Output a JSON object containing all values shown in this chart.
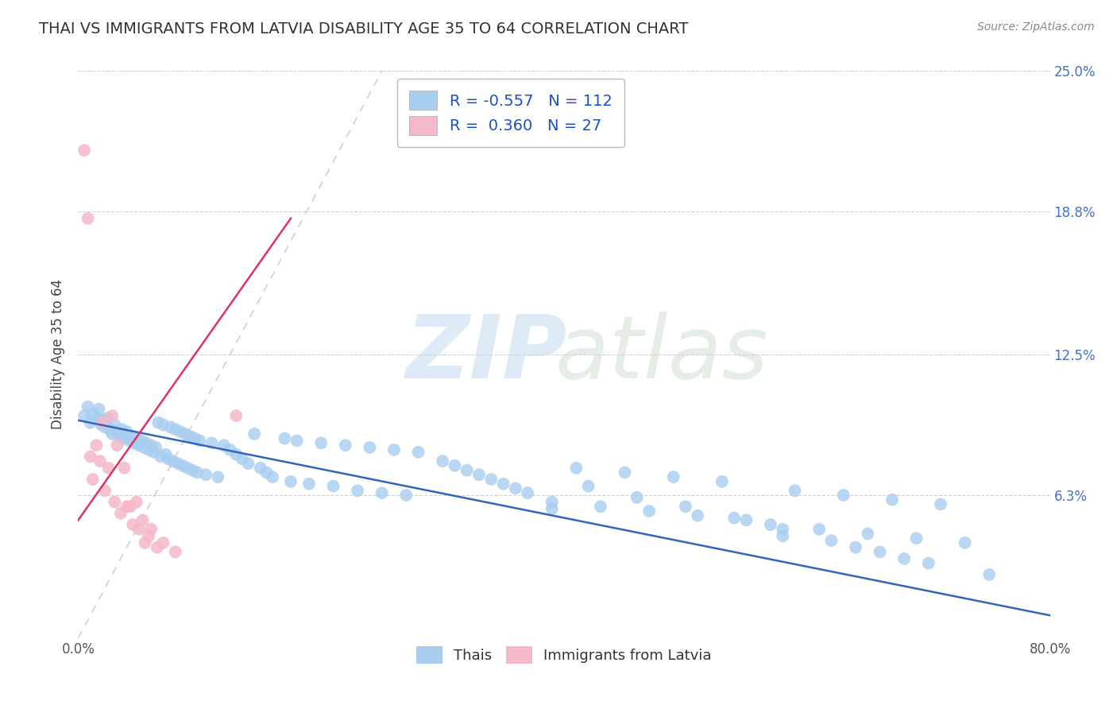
{
  "title": "THAI VS IMMIGRANTS FROM LATVIA DISABILITY AGE 35 TO 64 CORRELATION CHART",
  "source": "Source: ZipAtlas.com",
  "ylabel": "Disability Age 35 to 64",
  "xlim": [
    0.0,
    0.8
  ],
  "ylim": [
    0.0,
    0.25
  ],
  "ytick_right_labels": [
    "6.3%",
    "12.5%",
    "18.8%",
    "25.0%"
  ],
  "ytick_right_values": [
    0.063,
    0.125,
    0.188,
    0.25
  ],
  "legend_r_thai": "-0.557",
  "legend_n_thai": "112",
  "legend_r_latvia": "0.360",
  "legend_n_latvia": "27",
  "blue_color": "#A8CDEF",
  "pink_color": "#F5B8C8",
  "blue_line_color": "#3366BB",
  "pink_line_color": "#DD3366",
  "ref_line_color": "#CCCCCC",
  "thai_x": [
    0.005,
    0.008,
    0.01,
    0.012,
    0.015,
    0.017,
    0.019,
    0.02,
    0.022,
    0.024,
    0.026,
    0.028,
    0.03,
    0.032,
    0.034,
    0.036,
    0.038,
    0.04,
    0.042,
    0.044,
    0.046,
    0.048,
    0.05,
    0.052,
    0.054,
    0.056,
    0.058,
    0.06,
    0.062,
    0.064,
    0.066,
    0.068,
    0.07,
    0.072,
    0.074,
    0.076,
    0.078,
    0.08,
    0.082,
    0.084,
    0.086,
    0.088,
    0.09,
    0.092,
    0.094,
    0.096,
    0.098,
    0.1,
    0.105,
    0.11,
    0.115,
    0.12,
    0.125,
    0.13,
    0.135,
    0.14,
    0.145,
    0.15,
    0.155,
    0.16,
    0.17,
    0.175,
    0.18,
    0.19,
    0.2,
    0.21,
    0.22,
    0.23,
    0.24,
    0.25,
    0.26,
    0.27,
    0.28,
    0.3,
    0.31,
    0.32,
    0.33,
    0.34,
    0.35,
    0.36,
    0.37,
    0.39,
    0.41,
    0.43,
    0.45,
    0.47,
    0.49,
    0.51,
    0.53,
    0.55,
    0.57,
    0.59,
    0.61,
    0.63,
    0.65,
    0.67,
    0.69,
    0.71,
    0.73,
    0.39,
    0.42,
    0.46,
    0.5,
    0.54,
    0.58,
    0.62,
    0.66,
    0.7,
    0.75,
    0.58,
    0.64,
    0.68
  ],
  "thai_y": [
    0.098,
    0.102,
    0.095,
    0.099,
    0.097,
    0.101,
    0.094,
    0.096,
    0.093,
    0.097,
    0.092,
    0.09,
    0.094,
    0.091,
    0.089,
    0.092,
    0.088,
    0.091,
    0.087,
    0.089,
    0.086,
    0.088,
    0.085,
    0.087,
    0.084,
    0.086,
    0.083,
    0.085,
    0.082,
    0.084,
    0.095,
    0.08,
    0.094,
    0.081,
    0.079,
    0.093,
    0.078,
    0.092,
    0.077,
    0.091,
    0.076,
    0.09,
    0.075,
    0.089,
    0.074,
    0.088,
    0.073,
    0.087,
    0.072,
    0.086,
    0.071,
    0.085,
    0.083,
    0.081,
    0.079,
    0.077,
    0.09,
    0.075,
    0.073,
    0.071,
    0.088,
    0.069,
    0.087,
    0.068,
    0.086,
    0.067,
    0.085,
    0.065,
    0.084,
    0.064,
    0.083,
    0.063,
    0.082,
    0.078,
    0.076,
    0.074,
    0.072,
    0.07,
    0.068,
    0.066,
    0.064,
    0.06,
    0.075,
    0.058,
    0.073,
    0.056,
    0.071,
    0.054,
    0.069,
    0.052,
    0.05,
    0.065,
    0.048,
    0.063,
    0.046,
    0.061,
    0.044,
    0.059,
    0.042,
    0.057,
    0.067,
    0.062,
    0.058,
    0.053,
    0.048,
    0.043,
    0.038,
    0.033,
    0.028,
    0.045,
    0.04,
    0.035
  ],
  "latvia_x": [
    0.005,
    0.008,
    0.01,
    0.012,
    0.015,
    0.018,
    0.02,
    0.022,
    0.025,
    0.028,
    0.03,
    0.032,
    0.035,
    0.038,
    0.04,
    0.043,
    0.045,
    0.048,
    0.05,
    0.053,
    0.055,
    0.058,
    0.06,
    0.065,
    0.07,
    0.08,
    0.13
  ],
  "latvia_y": [
    0.215,
    0.185,
    0.08,
    0.07,
    0.085,
    0.078,
    0.095,
    0.065,
    0.075,
    0.098,
    0.06,
    0.085,
    0.055,
    0.075,
    0.058,
    0.058,
    0.05,
    0.06,
    0.048,
    0.052,
    0.042,
    0.045,
    0.048,
    0.04,
    0.042,
    0.038,
    0.098
  ],
  "blue_line_x": [
    0.0,
    0.8
  ],
  "blue_line_y": [
    0.096,
    0.01
  ],
  "pink_line_x": [
    0.0,
    0.175
  ],
  "pink_line_y": [
    0.052,
    0.185
  ],
  "ref_line_x": [
    0.0,
    0.25
  ],
  "ref_line_y": [
    0.0,
    0.25
  ]
}
